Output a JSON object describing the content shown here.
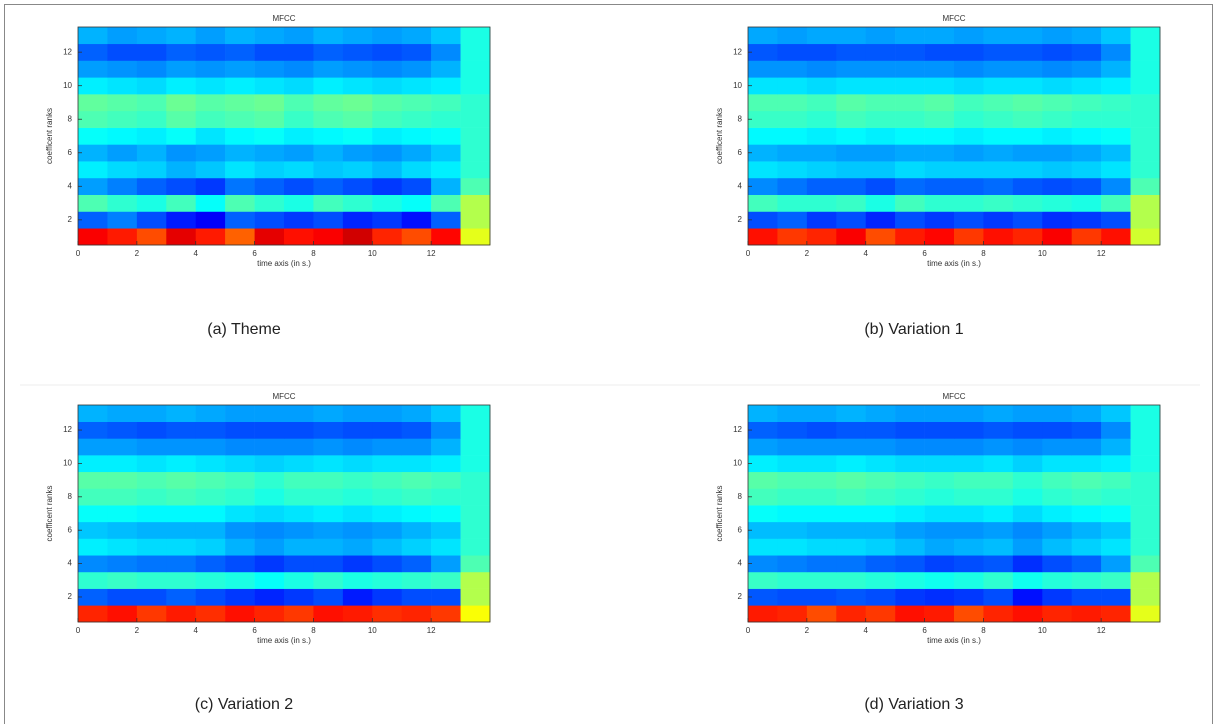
{
  "chart_data": [
    {
      "type": "heatmap",
      "title": "MFCC",
      "xlabel": "time axis (in s.)",
      "ylabel": "coefficent ranks",
      "caption": "(a) Theme",
      "colormap": "jet",
      "zlim": [
        0,
        1
      ],
      "xbins": [
        0,
        1,
        2,
        3,
        4,
        5,
        6,
        7,
        8,
        9,
        10,
        11,
        12,
        13,
        14
      ],
      "ylim": [
        0.5,
        13.5
      ],
      "xlim": [
        0,
        14
      ],
      "xticks": [
        0,
        2,
        4,
        6,
        8,
        10,
        12
      ],
      "yticks": [
        2,
        4,
        6,
        8,
        10,
        12
      ],
      "z": [
        [
          0.88,
          0.85,
          0.8,
          0.9,
          0.85,
          0.78,
          0.9,
          0.86,
          0.88,
          0.92,
          0.84,
          0.8,
          0.87,
          0.6
        ],
        [
          0.22,
          0.25,
          0.2,
          0.15,
          0.12,
          0.22,
          0.2,
          0.18,
          0.2,
          0.16,
          0.18,
          0.14,
          0.22,
          0.55
        ],
        [
          0.45,
          0.42,
          0.4,
          0.44,
          0.38,
          0.45,
          0.42,
          0.4,
          0.44,
          0.42,
          0.4,
          0.38,
          0.45,
          0.55
        ],
        [
          0.28,
          0.25,
          0.22,
          0.2,
          0.18,
          0.24,
          0.22,
          0.2,
          0.22,
          0.2,
          0.18,
          0.2,
          0.3,
          0.45
        ],
        [
          0.36,
          0.34,
          0.33,
          0.3,
          0.32,
          0.35,
          0.33,
          0.34,
          0.32,
          0.33,
          0.31,
          0.34,
          0.36,
          0.42
        ],
        [
          0.3,
          0.28,
          0.3,
          0.27,
          0.28,
          0.3,
          0.29,
          0.28,
          0.3,
          0.28,
          0.27,
          0.29,
          0.32,
          0.42
        ],
        [
          0.38,
          0.37,
          0.36,
          0.38,
          0.35,
          0.37,
          0.38,
          0.36,
          0.37,
          0.38,
          0.36,
          0.37,
          0.38,
          0.42
        ],
        [
          0.45,
          0.44,
          0.43,
          0.46,
          0.44,
          0.45,
          0.46,
          0.43,
          0.45,
          0.46,
          0.44,
          0.43,
          0.42,
          0.42
        ],
        [
          0.47,
          0.46,
          0.45,
          0.48,
          0.46,
          0.47,
          0.48,
          0.45,
          0.47,
          0.48,
          0.46,
          0.45,
          0.44,
          0.42
        ],
        [
          0.36,
          0.35,
          0.34,
          0.36,
          0.35,
          0.36,
          0.35,
          0.34,
          0.36,
          0.35,
          0.34,
          0.35,
          0.36,
          0.4
        ],
        [
          0.28,
          0.27,
          0.26,
          0.28,
          0.27,
          0.28,
          0.27,
          0.26,
          0.28,
          0.27,
          0.26,
          0.27,
          0.3,
          0.4
        ],
        [
          0.22,
          0.2,
          0.2,
          0.22,
          0.21,
          0.22,
          0.2,
          0.2,
          0.22,
          0.21,
          0.2,
          0.21,
          0.26,
          0.4
        ],
        [
          0.3,
          0.28,
          0.29,
          0.3,
          0.28,
          0.3,
          0.29,
          0.28,
          0.3,
          0.29,
          0.28,
          0.29,
          0.32,
          0.4
        ]
      ]
    },
    {
      "type": "heatmap",
      "title": "MFCC",
      "xlabel": "time axis (in s.)",
      "ylabel": "coefficent ranks",
      "caption": "(b) Variation 1",
      "colormap": "jet",
      "zlim": [
        0,
        1
      ],
      "xbins": [
        0,
        1,
        2,
        3,
        4,
        5,
        6,
        7,
        8,
        9,
        10,
        11,
        12,
        13,
        14
      ],
      "ylim": [
        0.5,
        13.5
      ],
      "xlim": [
        0,
        14
      ],
      "xticks": [
        0,
        2,
        4,
        6,
        8,
        10,
        12
      ],
      "yticks": [
        2,
        4,
        6,
        8,
        10,
        12
      ],
      "z": [
        [
          0.86,
          0.82,
          0.84,
          0.88,
          0.8,
          0.85,
          0.87,
          0.82,
          0.86,
          0.84,
          0.88,
          0.82,
          0.86,
          0.58
        ],
        [
          0.2,
          0.22,
          0.18,
          0.2,
          0.16,
          0.2,
          0.18,
          0.2,
          0.18,
          0.2,
          0.17,
          0.18,
          0.2,
          0.55
        ],
        [
          0.44,
          0.42,
          0.42,
          0.43,
          0.4,
          0.44,
          0.42,
          0.42,
          0.43,
          0.42,
          0.41,
          0.4,
          0.44,
          0.55
        ],
        [
          0.26,
          0.24,
          0.22,
          0.22,
          0.2,
          0.23,
          0.22,
          0.22,
          0.23,
          0.21,
          0.2,
          0.21,
          0.26,
          0.45
        ],
        [
          0.35,
          0.34,
          0.33,
          0.32,
          0.32,
          0.34,
          0.33,
          0.33,
          0.33,
          0.33,
          0.32,
          0.33,
          0.35,
          0.42
        ],
        [
          0.3,
          0.29,
          0.29,
          0.28,
          0.28,
          0.29,
          0.29,
          0.28,
          0.29,
          0.28,
          0.28,
          0.29,
          0.31,
          0.42
        ],
        [
          0.37,
          0.37,
          0.36,
          0.37,
          0.36,
          0.37,
          0.37,
          0.36,
          0.37,
          0.37,
          0.36,
          0.37,
          0.38,
          0.42
        ],
        [
          0.43,
          0.43,
          0.42,
          0.44,
          0.43,
          0.43,
          0.44,
          0.42,
          0.43,
          0.44,
          0.43,
          0.42,
          0.42,
          0.42
        ],
        [
          0.45,
          0.45,
          0.44,
          0.46,
          0.45,
          0.45,
          0.46,
          0.44,
          0.45,
          0.46,
          0.45,
          0.44,
          0.43,
          0.42
        ],
        [
          0.35,
          0.35,
          0.34,
          0.35,
          0.35,
          0.35,
          0.35,
          0.34,
          0.35,
          0.35,
          0.34,
          0.35,
          0.36,
          0.4
        ],
        [
          0.27,
          0.27,
          0.26,
          0.27,
          0.27,
          0.27,
          0.27,
          0.26,
          0.27,
          0.27,
          0.26,
          0.27,
          0.3,
          0.4
        ],
        [
          0.21,
          0.2,
          0.2,
          0.21,
          0.21,
          0.21,
          0.2,
          0.2,
          0.21,
          0.21,
          0.2,
          0.21,
          0.26,
          0.4
        ],
        [
          0.29,
          0.28,
          0.29,
          0.29,
          0.28,
          0.29,
          0.29,
          0.28,
          0.29,
          0.29,
          0.28,
          0.29,
          0.32,
          0.4
        ]
      ]
    },
    {
      "type": "heatmap",
      "title": "MFCC",
      "xlabel": "time axis (in s.)",
      "ylabel": "coefficent ranks",
      "caption": "(c) Variation 2",
      "colormap": "jet",
      "zlim": [
        0,
        1
      ],
      "xbins": [
        0,
        1,
        2,
        3,
        4,
        5,
        6,
        7,
        8,
        9,
        10,
        11,
        12,
        13,
        14
      ],
      "ylim": [
        0.5,
        13.5
      ],
      "xlim": [
        0,
        14
      ],
      "xticks": [
        0,
        2,
        4,
        6,
        8,
        10,
        12
      ],
      "yticks": [
        2,
        4,
        6,
        8,
        10,
        12
      ],
      "z": [
        [
          0.84,
          0.86,
          0.82,
          0.85,
          0.83,
          0.86,
          0.84,
          0.82,
          0.86,
          0.85,
          0.83,
          0.84,
          0.82,
          0.62
        ],
        [
          0.22,
          0.2,
          0.2,
          0.22,
          0.2,
          0.18,
          0.16,
          0.18,
          0.2,
          0.15,
          0.18,
          0.2,
          0.2,
          0.55
        ],
        [
          0.42,
          0.43,
          0.42,
          0.42,
          0.41,
          0.4,
          0.38,
          0.4,
          0.42,
          0.4,
          0.41,
          0.42,
          0.43,
          0.55
        ],
        [
          0.26,
          0.25,
          0.24,
          0.24,
          0.22,
          0.2,
          0.18,
          0.2,
          0.2,
          0.18,
          0.2,
          0.22,
          0.28,
          0.45
        ],
        [
          0.36,
          0.35,
          0.34,
          0.34,
          0.33,
          0.3,
          0.28,
          0.3,
          0.3,
          0.29,
          0.31,
          0.33,
          0.35,
          0.42
        ],
        [
          0.32,
          0.31,
          0.3,
          0.3,
          0.3,
          0.27,
          0.26,
          0.27,
          0.28,
          0.27,
          0.28,
          0.3,
          0.32,
          0.42
        ],
        [
          0.38,
          0.38,
          0.37,
          0.37,
          0.37,
          0.35,
          0.34,
          0.35,
          0.36,
          0.35,
          0.36,
          0.37,
          0.38,
          0.42
        ],
        [
          0.44,
          0.44,
          0.43,
          0.44,
          0.43,
          0.42,
          0.4,
          0.42,
          0.42,
          0.41,
          0.42,
          0.43,
          0.42,
          0.42
        ],
        [
          0.46,
          0.46,
          0.45,
          0.46,
          0.45,
          0.44,
          0.42,
          0.44,
          0.44,
          0.43,
          0.44,
          0.45,
          0.44,
          0.42
        ],
        [
          0.36,
          0.36,
          0.35,
          0.36,
          0.35,
          0.34,
          0.33,
          0.34,
          0.35,
          0.34,
          0.35,
          0.35,
          0.36,
          0.4
        ],
        [
          0.28,
          0.28,
          0.27,
          0.27,
          0.27,
          0.26,
          0.26,
          0.26,
          0.27,
          0.26,
          0.27,
          0.27,
          0.3,
          0.4
        ],
        [
          0.22,
          0.21,
          0.2,
          0.21,
          0.21,
          0.2,
          0.2,
          0.2,
          0.21,
          0.2,
          0.2,
          0.21,
          0.26,
          0.4
        ],
        [
          0.3,
          0.29,
          0.29,
          0.3,
          0.29,
          0.28,
          0.28,
          0.28,
          0.29,
          0.28,
          0.28,
          0.29,
          0.32,
          0.4
        ]
      ]
    },
    {
      "type": "heatmap",
      "title": "MFCC",
      "xlabel": "time axis (in s.)",
      "ylabel": "coefficent ranks",
      "caption": "(d) Variation 3",
      "colormap": "jet",
      "zlim": [
        0,
        1
      ],
      "xbins": [
        0,
        1,
        2,
        3,
        4,
        5,
        6,
        7,
        8,
        9,
        10,
        11,
        12,
        13,
        14
      ],
      "ylim": [
        0.5,
        13.5
      ],
      "xlim": [
        0,
        14
      ],
      "xticks": [
        0,
        2,
        4,
        6,
        8,
        10,
        12
      ],
      "yticks": [
        2,
        4,
        6,
        8,
        10,
        12
      ],
      "z": [
        [
          0.85,
          0.84,
          0.8,
          0.84,
          0.82,
          0.86,
          0.85,
          0.8,
          0.84,
          0.86,
          0.84,
          0.85,
          0.84,
          0.6
        ],
        [
          0.21,
          0.2,
          0.2,
          0.21,
          0.2,
          0.18,
          0.17,
          0.18,
          0.2,
          0.14,
          0.18,
          0.2,
          0.2,
          0.55
        ],
        [
          0.43,
          0.42,
          0.42,
          0.42,
          0.41,
          0.4,
          0.39,
          0.4,
          0.42,
          0.39,
          0.41,
          0.42,
          0.43,
          0.55
        ],
        [
          0.26,
          0.25,
          0.24,
          0.24,
          0.22,
          0.21,
          0.19,
          0.2,
          0.21,
          0.17,
          0.2,
          0.22,
          0.28,
          0.45
        ],
        [
          0.35,
          0.35,
          0.34,
          0.34,
          0.33,
          0.31,
          0.29,
          0.3,
          0.31,
          0.28,
          0.31,
          0.33,
          0.35,
          0.42
        ],
        [
          0.31,
          0.31,
          0.3,
          0.3,
          0.3,
          0.28,
          0.27,
          0.27,
          0.28,
          0.26,
          0.28,
          0.3,
          0.32,
          0.42
        ],
        [
          0.38,
          0.37,
          0.37,
          0.37,
          0.37,
          0.36,
          0.35,
          0.35,
          0.36,
          0.34,
          0.36,
          0.37,
          0.38,
          0.42
        ],
        [
          0.44,
          0.43,
          0.43,
          0.44,
          0.43,
          0.42,
          0.41,
          0.42,
          0.42,
          0.4,
          0.42,
          0.43,
          0.42,
          0.42
        ],
        [
          0.46,
          0.45,
          0.45,
          0.46,
          0.45,
          0.44,
          0.43,
          0.44,
          0.44,
          0.42,
          0.44,
          0.45,
          0.44,
          0.42
        ],
        [
          0.36,
          0.35,
          0.35,
          0.36,
          0.35,
          0.34,
          0.34,
          0.34,
          0.35,
          0.33,
          0.35,
          0.35,
          0.36,
          0.4
        ],
        [
          0.28,
          0.27,
          0.27,
          0.27,
          0.27,
          0.26,
          0.26,
          0.26,
          0.27,
          0.26,
          0.27,
          0.27,
          0.3,
          0.4
        ],
        [
          0.22,
          0.21,
          0.2,
          0.21,
          0.21,
          0.2,
          0.2,
          0.2,
          0.21,
          0.2,
          0.2,
          0.21,
          0.26,
          0.4
        ],
        [
          0.3,
          0.29,
          0.29,
          0.3,
          0.29,
          0.28,
          0.28,
          0.28,
          0.29,
          0.28,
          0.28,
          0.29,
          0.32,
          0.4
        ]
      ]
    }
  ]
}
